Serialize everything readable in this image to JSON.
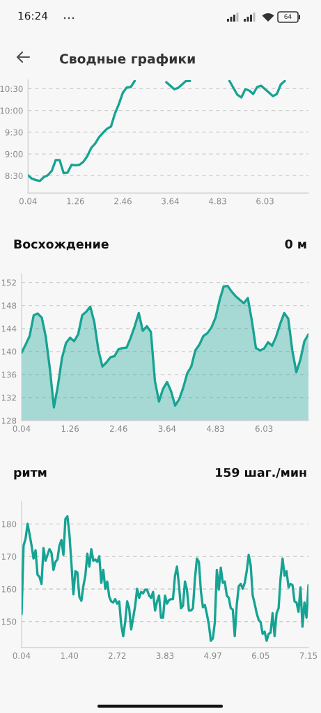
{
  "chart_data": [
    {
      "type": "line",
      "title": "Сводные графики",
      "annotations": [
        "16:24",
        "64"
      ],
      "categories": [
        "0.04",
        null,
        null,
        null,
        null,
        null,
        null,
        null,
        null,
        null,
        null,
        null,
        "1.26",
        null,
        null,
        null,
        null,
        null,
        null,
        null,
        null,
        null,
        null,
        null,
        "2.46",
        null,
        null,
        null,
        null,
        null,
        null,
        null,
        null,
        null,
        null,
        null,
        "3.64",
        null,
        null,
        null,
        null,
        null,
        null,
        null,
        null,
        null,
        null,
        null,
        "4.83",
        null,
        null,
        null,
        null,
        null,
        null,
        null,
        null,
        null,
        null,
        null,
        "6.03",
        null,
        null,
        null,
        null,
        null,
        null,
        null,
        null,
        null,
        null,
        null
      ],
      "series": [
        {
          "color": "#17a393",
          "values": [
            8.51,
            8.43,
            8.4,
            8.38,
            8.47,
            8.51,
            8.61,
            8.86,
            8.86,
            8.56,
            8.57,
            8.75,
            8.74,
            8.75,
            8.82,
            8.95,
            9.14,
            9.24,
            9.39,
            9.49,
            9.58,
            9.63,
            9.93,
            10.15,
            10.41,
            10.53,
            10.54,
            10.68,
            null,
            null,
            null,
            null,
            null,
            null,
            null,
            10.65,
            10.57,
            10.49,
            10.52,
            10.6,
            10.68,
            10.68,
            null,
            null,
            null,
            null,
            null,
            null,
            null,
            null,
            null,
            10.68,
            10.52,
            10.36,
            10.3,
            10.49,
            10.46,
            10.38,
            10.54,
            10.57,
            10.49,
            10.41,
            10.33,
            10.38,
            10.6,
            10.68,
            null,
            null,
            null,
            null,
            null,
            null
          ]
        }
      ],
      "ylim": [
        8.1,
        10.7
      ],
      "yticks": [
        {
          "value": 8.5,
          "label": "8:30"
        },
        {
          "value": 9,
          "label": "9:00"
        },
        {
          "value": 9.5,
          "label": "9:30"
        },
        {
          "value": 10,
          "label": "10:00"
        },
        {
          "value": 10.5,
          "label": "10:30"
        }
      ],
      "grid": "y"
    },
    {
      "type": "area",
      "title": "Восхождение",
      "subtitle": "0 м",
      "categories": [
        "0.04",
        null,
        null,
        null,
        null,
        null,
        null,
        null,
        null,
        null,
        null,
        null,
        "1.26",
        null,
        null,
        null,
        null,
        null,
        null,
        null,
        null,
        null,
        null,
        null,
        "2.46",
        null,
        null,
        null,
        null,
        null,
        null,
        null,
        null,
        null,
        null,
        null,
        "3.64",
        null,
        null,
        null,
        null,
        null,
        null,
        null,
        null,
        null,
        null,
        null,
        "4.83",
        null,
        null,
        null,
        null,
        null,
        null,
        null,
        null,
        null,
        null,
        null,
        "6.03",
        null,
        null,
        null,
        null,
        null,
        null,
        null,
        null,
        null,
        null,
        null
      ],
      "series": [
        {
          "color": "#17a393",
          "values": [
            139.8,
            141.2,
            142.7,
            146.3,
            146.6,
            145.9,
            142.5,
            137.0,
            130.3,
            134.1,
            138.9,
            141.5,
            142.4,
            141.8,
            143.0,
            146.3,
            146.9,
            147.8,
            145.1,
            140.3,
            137.4,
            138.1,
            139.0,
            139.2,
            140.4,
            140.6,
            140.7,
            142.4,
            144.4,
            146.7,
            143.6,
            144.4,
            143.4,
            134.9,
            131.3,
            133.5,
            134.7,
            133.1,
            130.6,
            131.7,
            133.7,
            136.2,
            137.4,
            140.2,
            141.2,
            142.7,
            143.2,
            144.2,
            145.9,
            148.9,
            151.3,
            151.4,
            150.4,
            149.6,
            149.0,
            148.4,
            149.3,
            145.3,
            140.6,
            140.2,
            140.5,
            141.6,
            141.0,
            142.6,
            144.8,
            146.7,
            145.7,
            140.2,
            136.4,
            138.6,
            141.8,
            143.0
          ]
        }
      ],
      "ylim": [
        128,
        153.5
      ],
      "yticks": [
        128,
        132,
        136,
        140,
        144,
        148,
        152
      ],
      "grid": "y"
    },
    {
      "type": "line",
      "title": "ритм",
      "subtitle": "159 шаг./мин",
      "categories": [
        "0.04",
        null,
        null,
        null,
        null,
        null,
        null,
        null,
        null,
        null,
        null,
        null,
        null,
        null,
        null,
        null,
        null,
        null,
        null,
        null,
        null,
        null,
        null,
        null,
        "1.40",
        null,
        null,
        null,
        null,
        null,
        null,
        null,
        null,
        null,
        null,
        null,
        null,
        null,
        null,
        null,
        null,
        null,
        null,
        null,
        null,
        null,
        null,
        null,
        "2.72",
        null,
        null,
        null,
        null,
        null,
        null,
        null,
        null,
        null,
        null,
        null,
        null,
        null,
        null,
        null,
        null,
        null,
        null,
        null,
        null,
        null,
        null,
        null,
        "3.83",
        null,
        null,
        null,
        null,
        null,
        null,
        null,
        null,
        null,
        null,
        null,
        null,
        null,
        null,
        null,
        null,
        null,
        null,
        null,
        null,
        null,
        null,
        null,
        "4.97",
        null,
        null,
        null,
        null,
        null,
        null,
        null,
        null,
        null,
        null,
        null,
        null,
        null,
        null,
        null,
        null,
        null,
        null,
        null,
        null,
        null,
        null,
        null,
        "6.05",
        null,
        null,
        null,
        null,
        null,
        null,
        null,
        null,
        null,
        null,
        null,
        null,
        null,
        null,
        null,
        null,
        null,
        null,
        null,
        null,
        null,
        null,
        null,
        "7.15"
      ],
      "series": [
        {
          "color": "#17a393",
          "values": [
            152.3,
            173.4,
            175.5,
            180.1,
            176.9,
            173.4,
            169.4,
            171.9,
            164.4,
            163.7,
            161.6,
            172.6,
            168.7,
            170.5,
            172.3,
            171.2,
            165.9,
            168.4,
            169.1,
            173.4,
            175.1,
            170.5,
            181.6,
            182.4,
            176.9,
            168.0,
            158.4,
            165.5,
            165.1,
            157.6,
            156.4,
            160.9,
            164.1,
            170.9,
            166.9,
            172.3,
            168.7,
            169.1,
            168.4,
            170.1,
            161.9,
            165.9,
            160.1,
            162.3,
            157.6,
            156.2,
            155.9,
            156.9,
            155.5,
            156.2,
            149.1,
            145.5,
            149.8,
            156.2,
            154.1,
            147.6,
            151.1,
            154.8,
            160.1,
            157.3,
            159.1,
            158.7,
            159.8,
            159.8,
            158.0,
            157.3,
            159.1,
            153.4,
            156.2,
            158.0,
            151.2,
            151.2,
            158.0,
            155.5,
            156.6,
            156.9,
            156.9,
            164.1,
            166.9,
            161.2,
            154.1,
            154.8,
            162.3,
            159.8,
            153.4,
            153.4,
            154.1,
            163.0,
            169.4,
            168.4,
            159.4,
            154.4,
            155.1,
            152.3,
            149.1,
            144.1,
            144.8,
            149.8,
            165.9,
            159.8,
            166.6,
            161.9,
            162.3,
            158.0,
            157.3,
            154.1,
            153.7,
            145.5,
            155.1,
            160.9,
            161.6,
            160.1,
            161.9,
            165.5,
            170.5,
            167.3,
            158.0,
            155.5,
            152.6,
            150.5,
            149.8,
            146.2,
            146.9,
            144.1,
            146.2,
            146.6,
            152.6,
            145.5,
            152.6,
            154.1,
            163.4,
            169.4,
            164.1,
            165.5,
            160.5,
            161.6,
            161.2,
            156.2,
            155.9,
            153.0,
            160.5,
            148.4,
            155.9,
            151.2,
            161.2
          ]
        }
      ],
      "ylim": [
        142,
        187
      ],
      "yticks": [
        150,
        160,
        170,
        180
      ],
      "grid": "y"
    }
  ]
}
